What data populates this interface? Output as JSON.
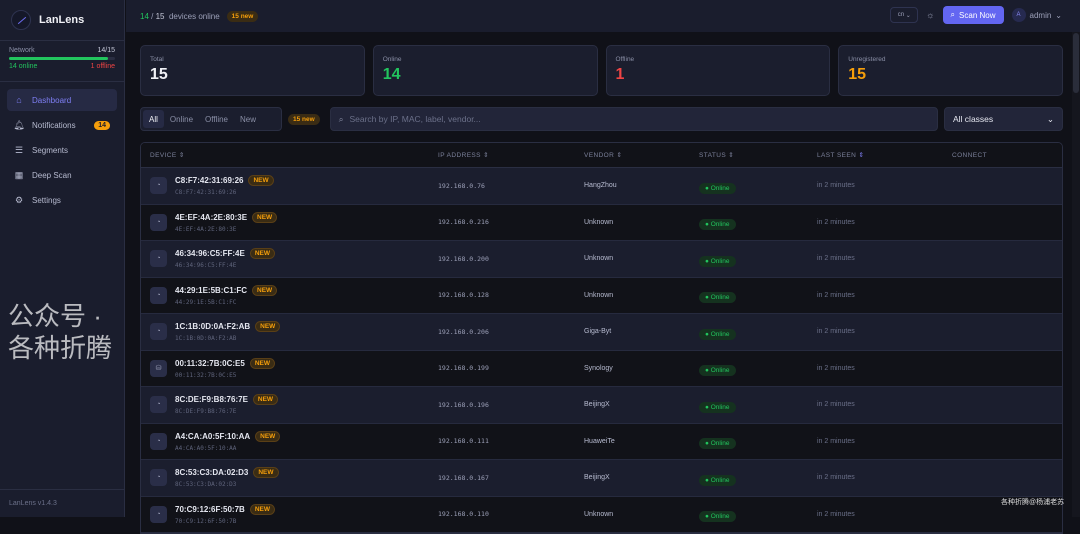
{
  "app": {
    "name": "LanLens",
    "version": "LanLens v1.4.3"
  },
  "network": {
    "label": "Network",
    "ratio": "14/15",
    "online": "14 online",
    "offline": "1 offline",
    "fraction": 0.933
  },
  "nav": [
    {
      "label": "Dashboard",
      "icon": "home-icon",
      "active": true
    },
    {
      "label": "Notifications",
      "icon": "bell-icon",
      "badge": "14"
    },
    {
      "label": "Segments",
      "icon": "layers-icon"
    },
    {
      "label": "Deep Scan",
      "icon": "layout-icon"
    },
    {
      "label": "Settings",
      "icon": "gear-icon"
    }
  ],
  "header": {
    "online": "14",
    "sep": "/",
    "total": "15",
    "suffix": "devices online",
    "new_badge": "15 new",
    "lang": "cn",
    "scan": "Scan Now",
    "avatar": "A",
    "user": "admin"
  },
  "cards": [
    {
      "label": "Total",
      "value": "15",
      "color": "#f0f1f6"
    },
    {
      "label": "Online",
      "value": "14",
      "color": "#22c55e"
    },
    {
      "label": "Offline",
      "value": "1",
      "color": "#ef4444"
    },
    {
      "label": "Unregistered",
      "value": "15",
      "color": "#f59e0b"
    }
  ],
  "filters": {
    "tabs": [
      "All",
      "Online",
      "Offline",
      "New"
    ],
    "new_badge": "15 new",
    "search_placeholder": "Search by IP, MAC, label, vendor...",
    "class_select": "All classes"
  },
  "table": {
    "columns": [
      "DEVICE",
      "IP ADDRESS",
      "VENDOR",
      "STATUS",
      "LAST SEEN",
      "CONNECT"
    ],
    "rows": [
      {
        "mac": "C8:F7:42:31:69:26",
        "ip": "192.168.0.76",
        "vendor": "HangZhou",
        "status": "Online",
        "seen": "in 2 minutes",
        "icon": "gauge-icon"
      },
      {
        "mac": "4E:EF:4A:2E:80:3E",
        "ip": "192.168.0.216",
        "vendor": "Unknown",
        "status": "Online",
        "seen": "in 2 minutes",
        "icon": "gauge-icon"
      },
      {
        "mac": "46:34:96:C5:FF:4E",
        "ip": "192.168.0.200",
        "vendor": "Unknown",
        "status": "Online",
        "seen": "in 2 minutes",
        "icon": "gauge-icon"
      },
      {
        "mac": "44:29:1E:5B:C1:FC",
        "ip": "192.168.0.128",
        "vendor": "Unknown",
        "status": "Online",
        "seen": "in 2 minutes",
        "icon": "gauge-icon"
      },
      {
        "mac": "1C:1B:0D:0A:F2:AB",
        "ip": "192.168.0.206",
        "vendor": "Giga-Byt",
        "status": "Online",
        "seen": "in 2 minutes",
        "icon": "gauge-icon"
      },
      {
        "mac": "00:11:32:7B:0C:E5",
        "ip": "192.168.0.199",
        "vendor": "Synology",
        "status": "Online",
        "seen": "in 2 minutes",
        "icon": "database-icon"
      },
      {
        "mac": "8C:DE:F9:B8:76:7E",
        "ip": "192.168.0.196",
        "vendor": "BeijingX",
        "status": "Online",
        "seen": "in 2 minutes",
        "icon": "gauge-icon"
      },
      {
        "mac": "A4:CA:A0:5F:10:AA",
        "ip": "192.168.0.111",
        "vendor": "HuaweiTe",
        "status": "Online",
        "seen": "in 2 minutes",
        "icon": "gauge-icon"
      },
      {
        "mac": "8C:53:C3:DA:02:D3",
        "ip": "192.168.0.167",
        "vendor": "BeijingX",
        "status": "Online",
        "seen": "in 2 minutes",
        "icon": "gauge-icon"
      },
      {
        "mac": "70:C9:12:6F:50:7B",
        "ip": "192.168.0.110",
        "vendor": "Unknown",
        "status": "Online",
        "seen": "in 2 minutes",
        "icon": "gauge-icon"
      }
    ],
    "new_label": "NEW"
  },
  "watermark": {
    "main": "公众号 · 各种折腾",
    "sub": "各种折腾@杨浦老苏"
  }
}
